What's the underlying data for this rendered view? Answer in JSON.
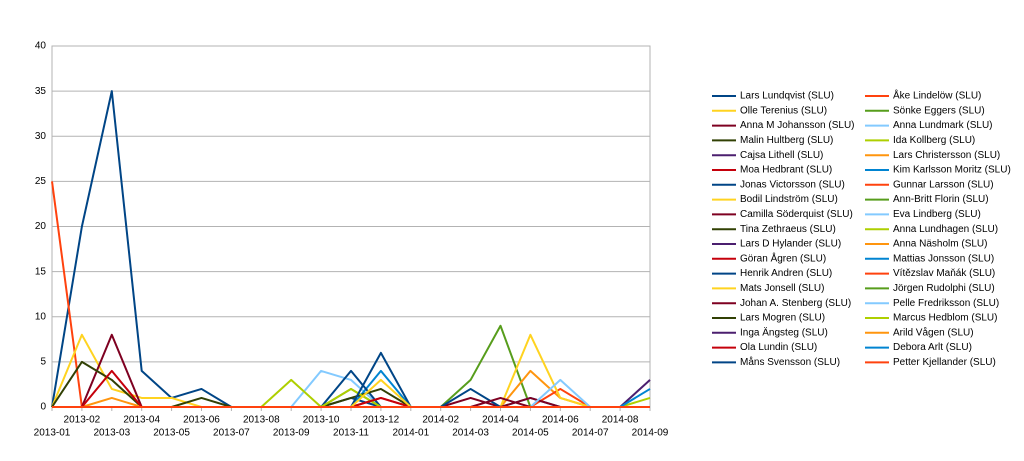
{
  "chart_data": {
    "type": "line",
    "categories": [
      "2013-01",
      "2013-02",
      "2013-03",
      "2013-04",
      "2013-05",
      "2013-06",
      "2013-07",
      "2013-08",
      "2013-09",
      "2013-10",
      "2013-11",
      "2013-12",
      "2014-01",
      "2014-02",
      "2014-03",
      "2014-04",
      "2014-05",
      "2014-06",
      "2014-07",
      "2014-08",
      "2014-09"
    ],
    "ylim": [
      0,
      40
    ],
    "yticks": [
      0,
      5,
      10,
      15,
      20,
      25,
      30,
      35,
      40
    ],
    "grid": true,
    "legend": "right",
    "series": [
      {
        "name": "Lars Lundqvist (SLU)",
        "color": "#004586",
        "values": [
          0,
          20,
          35,
          4,
          1,
          2,
          0,
          0,
          0,
          0,
          1,
          0,
          0,
          0,
          0,
          0,
          0,
          0,
          0,
          0,
          0
        ]
      },
      {
        "name": "Åke Lindelöw (SLU)",
        "color": "#ff420e",
        "values": [
          25,
          0,
          0,
          0,
          0,
          0,
          0,
          0,
          0,
          0,
          0,
          0,
          0,
          0,
          0,
          0,
          0,
          0,
          0,
          0,
          0
        ]
      },
      {
        "name": "Olle Terenius (SLU)",
        "color": "#ffd320",
        "values": [
          0,
          8,
          2,
          1,
          1,
          0,
          0,
          0,
          0,
          0,
          0,
          0,
          0,
          0,
          0,
          0,
          0,
          0,
          0,
          0,
          0
        ]
      },
      {
        "name": "Sönke Eggers (SLU)",
        "color": "#579d1c",
        "values": [
          0,
          0,
          0,
          0,
          0,
          0,
          0,
          0,
          0,
          0,
          0,
          0,
          0,
          0,
          3,
          9,
          0,
          0,
          0,
          0,
          0
        ]
      },
      {
        "name": "Anna M Johansson (SLU)",
        "color": "#7e0021",
        "values": [
          0,
          0,
          8,
          0,
          0,
          0,
          0,
          0,
          0,
          0,
          0,
          0,
          0,
          0,
          0,
          0,
          0,
          0,
          0,
          0,
          0
        ]
      },
      {
        "name": "Anna Lundmark (SLU)",
        "color": "#83caff",
        "values": [
          0,
          0,
          0,
          0,
          0,
          0,
          0,
          0,
          0,
          4,
          3,
          0,
          0,
          0,
          0,
          0,
          0,
          0,
          0,
          0,
          0
        ]
      },
      {
        "name": "Malin Hultberg (SLU)",
        "color": "#314004",
        "values": [
          0,
          5,
          3,
          0,
          0,
          1,
          0,
          0,
          0,
          0,
          0,
          0,
          0,
          0,
          0,
          0,
          0,
          0,
          0,
          0,
          0
        ]
      },
      {
        "name": "Ida Kollberg (SLU)",
        "color": "#aecf00",
        "values": [
          0,
          0,
          0,
          0,
          0,
          0,
          0,
          0,
          3,
          0,
          0,
          0,
          0,
          0,
          0,
          0,
          0,
          0,
          0,
          0,
          0
        ]
      },
      {
        "name": "Cajsa Lithell (SLU)",
        "color": "#4b1f6f",
        "values": [
          0,
          0,
          0,
          0,
          0,
          0,
          0,
          0,
          0,
          0,
          0,
          0,
          0,
          0,
          0,
          0,
          0,
          0,
          0,
          0,
          0
        ]
      },
      {
        "name": "Lars Christersson (SLU)",
        "color": "#ff950e",
        "values": [
          0,
          0,
          1,
          0,
          0,
          0,
          0,
          0,
          0,
          0,
          0,
          0,
          0,
          0,
          0,
          0,
          4,
          1,
          0,
          0,
          0
        ]
      },
      {
        "name": "Moa Hedbrant (SLU)",
        "color": "#c5000b",
        "values": [
          0,
          0,
          4,
          0,
          0,
          0,
          0,
          0,
          0,
          0,
          0,
          0,
          0,
          0,
          0,
          0,
          0,
          0,
          0,
          0,
          0
        ]
      },
      {
        "name": "Kim Karlsson Moritz (SLU)",
        "color": "#0084d1",
        "values": [
          0,
          0,
          0,
          0,
          0,
          0,
          0,
          0,
          0,
          0,
          0,
          4,
          0,
          0,
          0,
          0,
          1,
          0,
          0,
          0,
          0
        ]
      },
      {
        "name": "Jonas Victorsson (SLU)",
        "color": "#004586",
        "values": [
          0,
          0,
          0,
          0,
          0,
          0,
          0,
          0,
          0,
          0,
          4,
          0,
          0,
          0,
          0,
          0,
          0,
          0,
          0,
          0,
          0
        ]
      },
      {
        "name": "Gunnar Larsson (SLU)",
        "color": "#ff420e",
        "values": [
          0,
          0,
          0,
          0,
          0,
          0,
          0,
          0,
          0,
          0,
          0,
          1,
          0,
          0,
          0,
          0,
          0,
          2,
          0,
          0,
          0
        ]
      },
      {
        "name": "Bodil Lindström (SLU)",
        "color": "#ffd320",
        "values": [
          0,
          0,
          0,
          0,
          0,
          0,
          0,
          0,
          0,
          0,
          0,
          0,
          0,
          0,
          0,
          0,
          8,
          1,
          0,
          0,
          0
        ]
      },
      {
        "name": "Ann-Britt Florin (SLU)",
        "color": "#579d1c",
        "values": [
          0,
          0,
          0,
          0,
          0,
          0,
          0,
          0,
          0,
          0,
          2,
          0,
          0,
          0,
          0,
          0,
          0,
          0,
          0,
          0,
          0
        ]
      },
      {
        "name": "Camilla Söderquist (SLU)",
        "color": "#7e0021",
        "values": [
          0,
          0,
          0,
          0,
          0,
          0,
          0,
          0,
          0,
          0,
          0,
          0,
          0,
          0,
          1,
          0,
          1,
          0,
          0,
          0,
          0
        ]
      },
      {
        "name": "Eva Lindberg (SLU)",
        "color": "#83caff",
        "values": [
          0,
          0,
          0,
          0,
          0,
          0,
          0,
          0,
          0,
          0,
          0,
          0,
          0,
          0,
          0,
          0,
          0,
          3,
          0,
          0,
          0
        ]
      },
      {
        "name": "Tina Zethraeus (SLU)",
        "color": "#314004",
        "values": [
          0,
          0,
          0,
          0,
          0,
          0,
          0,
          0,
          0,
          0,
          1,
          2,
          0,
          0,
          0,
          0,
          0,
          0,
          0,
          0,
          0
        ]
      },
      {
        "name": "Anna Lundhagen (SLU)",
        "color": "#aecf00",
        "values": [
          0,
          0,
          0,
          0,
          0,
          0,
          0,
          0,
          0,
          0,
          2,
          0,
          0,
          0,
          0,
          0,
          0,
          0,
          0,
          0,
          0
        ]
      },
      {
        "name": "Lars D Hylander (SLU)",
        "color": "#4b1f6f",
        "values": [
          0,
          0,
          0,
          0,
          0,
          0,
          0,
          0,
          0,
          0,
          0,
          0,
          0,
          0,
          0,
          0,
          0,
          0,
          0,
          0,
          0
        ]
      },
      {
        "name": "Anna Näsholm (SLU)",
        "color": "#ff950e",
        "values": [
          0,
          0,
          0,
          0,
          0,
          0,
          0,
          0,
          0,
          0,
          0,
          0,
          0,
          0,
          0,
          0,
          0,
          0,
          0,
          0,
          0
        ]
      },
      {
        "name": "Göran Ågren (SLU)",
        "color": "#c5000b",
        "values": [
          0,
          0,
          0,
          0,
          0,
          0,
          0,
          0,
          0,
          0,
          0,
          1,
          0,
          0,
          0,
          0,
          0,
          0,
          0,
          0,
          0
        ]
      },
      {
        "name": "Mattias Jonsson (SLU)",
        "color": "#0084d1",
        "values": [
          0,
          0,
          0,
          0,
          0,
          0,
          0,
          0,
          0,
          0,
          0,
          0,
          0,
          0,
          0,
          0,
          0,
          0,
          0,
          0,
          0
        ]
      },
      {
        "name": "Henrik Andren (SLU)",
        "color": "#004586",
        "values": [
          0,
          0,
          0,
          0,
          0,
          0,
          0,
          0,
          0,
          0,
          0,
          6,
          0,
          0,
          2,
          0,
          0,
          0,
          0,
          0,
          0
        ]
      },
      {
        "name": "Vítězslav Maňák (SLU)",
        "color": "#ff420e",
        "values": [
          0,
          0,
          0,
          0,
          0,
          0,
          0,
          0,
          0,
          0,
          0,
          0,
          0,
          0,
          0,
          0,
          0,
          0,
          0,
          0,
          0
        ]
      },
      {
        "name": "Mats Jonsell (SLU)",
        "color": "#ffd320",
        "values": [
          0,
          0,
          0,
          0,
          0,
          0,
          0,
          0,
          0,
          0,
          0,
          3,
          0,
          0,
          0,
          0,
          0,
          0,
          0,
          0,
          0
        ]
      },
      {
        "name": "Jörgen Rudolphi (SLU)",
        "color": "#579d1c",
        "values": [
          0,
          0,
          0,
          0,
          0,
          0,
          0,
          0,
          0,
          0,
          0,
          0,
          0,
          0,
          0,
          0,
          0,
          0,
          0,
          0,
          0
        ]
      },
      {
        "name": "Johan A. Stenberg (SLU)",
        "color": "#7e0021",
        "values": [
          0,
          0,
          0,
          0,
          0,
          0,
          0,
          0,
          0,
          0,
          0,
          0,
          0,
          0,
          0,
          1,
          0,
          0,
          0,
          0,
          0
        ]
      },
      {
        "name": "Pelle Fredriksson (SLU)",
        "color": "#83caff",
        "values": [
          0,
          0,
          0,
          0,
          0,
          0,
          0,
          0,
          0,
          0,
          0,
          0,
          0,
          0,
          0,
          0,
          0,
          0,
          0,
          0,
          0
        ]
      },
      {
        "name": "Lars Mogren (SLU)",
        "color": "#314004",
        "values": [
          0,
          0,
          0,
          0,
          0,
          0,
          0,
          0,
          0,
          0,
          0,
          0,
          0,
          0,
          0,
          0,
          0,
          0,
          0,
          0,
          0
        ]
      },
      {
        "name": "Marcus Hedblom (SLU)",
        "color": "#aecf00",
        "values": [
          0,
          0,
          0,
          0,
          0,
          0,
          0,
          0,
          0,
          0,
          0,
          0,
          0,
          0,
          0,
          0,
          0,
          0,
          0,
          0,
          1
        ]
      },
      {
        "name": "Inga Ängsteg (SLU)",
        "color": "#4b1f6f",
        "values": [
          0,
          0,
          0,
          0,
          0,
          0,
          0,
          0,
          0,
          0,
          0,
          0,
          0,
          0,
          0,
          0,
          0,
          0,
          0,
          0,
          3
        ]
      },
      {
        "name": "Arild Vågen (SLU)",
        "color": "#ff950e",
        "values": [
          0,
          0,
          0,
          0,
          0,
          0,
          0,
          0,
          0,
          0,
          0,
          0,
          0,
          0,
          0,
          0,
          0,
          0,
          0,
          0,
          0
        ]
      },
      {
        "name": "Ola Lundin (SLU)",
        "color": "#c5000b",
        "values": [
          0,
          0,
          0,
          0,
          0,
          0,
          0,
          0,
          0,
          0,
          0,
          0,
          0,
          0,
          0,
          0,
          0,
          0,
          0,
          0,
          0
        ]
      },
      {
        "name": "Debora Arlt (SLU)",
        "color": "#0084d1",
        "values": [
          0,
          0,
          0,
          0,
          0,
          0,
          0,
          0,
          0,
          0,
          0,
          0,
          0,
          0,
          0,
          0,
          0,
          0,
          0,
          0,
          2
        ]
      },
      {
        "name": "Måns Svensson (SLU)",
        "color": "#004586",
        "values": [
          0,
          0,
          0,
          0,
          0,
          0,
          0,
          0,
          0,
          0,
          0,
          0,
          0,
          0,
          0,
          0,
          0,
          0,
          0,
          0,
          0
        ]
      },
      {
        "name": "Petter Kjellander (SLU)",
        "color": "#ff420e",
        "values": [
          0,
          0,
          0,
          0,
          0,
          0,
          0,
          0,
          0,
          0,
          0,
          0,
          0,
          0,
          0,
          0,
          0,
          0,
          0,
          0,
          0
        ]
      }
    ]
  }
}
